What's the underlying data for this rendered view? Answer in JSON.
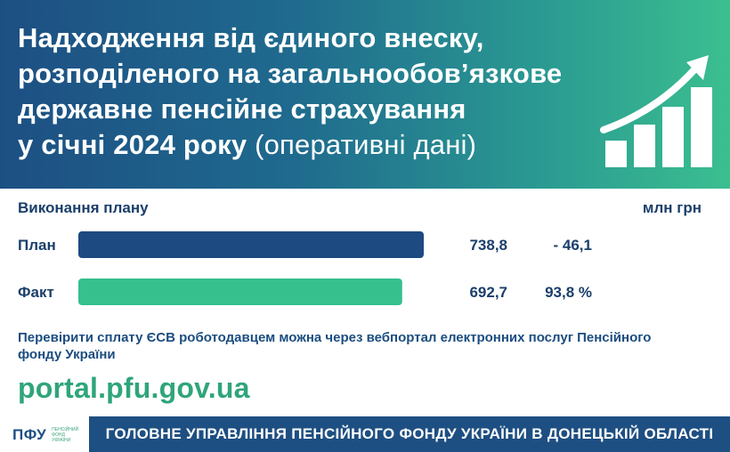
{
  "header": {
    "title_lines": [
      "Надходження від єдиного внеску,",
      "розподіленого на загальнообов’язкове",
      "державне пенсійне страхування",
      "у січні 2024 року"
    ],
    "title_note": "(оперативні дані)"
  },
  "chart_data": {
    "type": "bar",
    "orientation": "horizontal",
    "title": "Виконання плану",
    "unit": "млн грн",
    "categories": [
      "План",
      "Факт"
    ],
    "values": [
      738.8,
      692.7
    ],
    "value_labels": [
      "738,8",
      "692,7"
    ],
    "side_labels": [
      "- 46,1",
      "93,8 %"
    ],
    "colors": [
      "#1d4a80",
      "#35c08e"
    ]
  },
  "info": {
    "text": "Перевірити сплату ЄСВ роботодавцем можна через вебпортал електронних послуг Пенсійного фонду України",
    "portal": "portal.pfu.gov.ua"
  },
  "footer": {
    "logo_abbr": "ПФУ",
    "logo_text": "ПЕНСІЙНИЙ ФОНД УКРАЇНИ",
    "banner": "ГОЛОВНЕ УПРАВЛІННЯ ПЕНСІЙНОГО ФОНДУ УКРАЇНИ В ДОНЕЦЬКІЙ ОБЛАСТІ"
  },
  "colors": {
    "header_start": "#1d4f83",
    "header_end": "#3bbf8f",
    "navy": "#1b3f6b",
    "green": "#2fa57a"
  },
  "icons": [
    "growth-chart-icon"
  ]
}
